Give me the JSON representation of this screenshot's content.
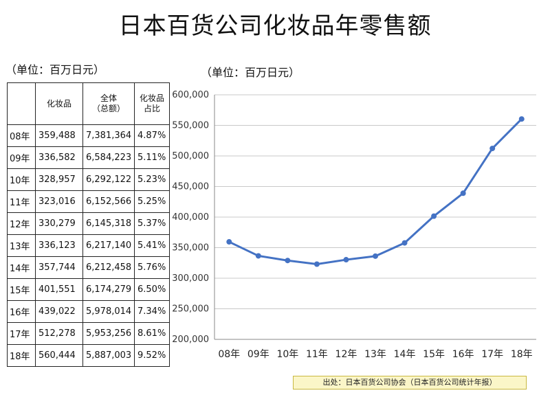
{
  "title": "日本百货公司化妆品年零售额",
  "table_unit": "（单位：百万日元）",
  "chart_unit": "（单位：百万日元）",
  "table": {
    "headers": [
      "",
      "化妆品",
      "全体\n（总额）",
      "化妆品\n占比"
    ],
    "rows": [
      [
        "08年",
        "359,488",
        "7,381,364",
        "4.87%"
      ],
      [
        "09年",
        "336,582",
        "6,584,223",
        "5.11%"
      ],
      [
        "10年",
        "328,957",
        "6,292,122",
        "5.23%"
      ],
      [
        "11年",
        "323,016",
        "6,152,566",
        "5.25%"
      ],
      [
        "12年",
        "330,279",
        "6,145,318",
        "5.37%"
      ],
      [
        "13年",
        "336,123",
        "6,217,140",
        "5.41%"
      ],
      [
        "14年",
        "357,744",
        "6,212,458",
        "5.76%"
      ],
      [
        "15年",
        "401,551",
        "6,174,279",
        "6.50%"
      ],
      [
        "16年",
        "439,022",
        "5,978,014",
        "7.34%"
      ],
      [
        "17年",
        "512,278",
        "5,953,256",
        "8.61%"
      ],
      [
        "18年",
        "560,444",
        "5,887,003",
        "9.52%"
      ]
    ]
  },
  "source": "出处：日本百货公司协会（日本百货公司统计年报）",
  "chart_data": {
    "type": "line",
    "title": "日本百货公司化妆品年零售额",
    "ylabel": "（单位：百万日元）",
    "categories": [
      "08年",
      "09年",
      "10年",
      "11年",
      "12年",
      "13年",
      "14年",
      "15年",
      "16年",
      "17年",
      "18年"
    ],
    "series": [
      {
        "values": [
          359488,
          336582,
          328957,
          323016,
          330279,
          336123,
          357744,
          401551,
          439022,
          512278,
          560444
        ]
      }
    ],
    "ylim": [
      200000,
      600000
    ],
    "yticks": [
      200000,
      250000,
      300000,
      350000,
      400000,
      450000,
      500000,
      550000,
      600000
    ],
    "ytick_labels": [
      "200,000",
      "250,000",
      "300,000",
      "350,000",
      "400,000",
      "450,000",
      "500,000",
      "550,000",
      "600,000"
    ],
    "grid": true,
    "line_color": "#4472c4"
  }
}
